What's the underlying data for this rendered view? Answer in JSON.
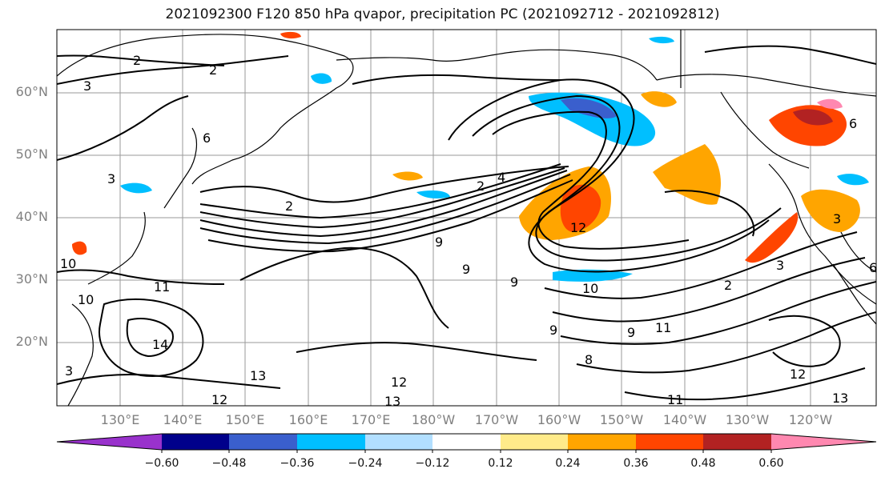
{
  "title": "2021092300 F120 850 hPa qvapor, precipitation PC (2021092712 - 2021092812)",
  "lat_labels": [
    "60°N",
    "50°N",
    "40°N",
    "30°N",
    "20°N"
  ],
  "lon_labels": [
    "130°E",
    "140°E",
    "150°E",
    "160°E",
    "170°E",
    "180°W",
    "170°W",
    "160°W",
    "150°W",
    "140°W",
    "130°W",
    "120°W"
  ],
  "contour_labels": [
    "2",
    "2",
    "3",
    "2",
    "6",
    "3",
    "4",
    "2",
    "12",
    "6",
    "3",
    "9",
    "9",
    "9",
    "10",
    "11",
    "10",
    "14",
    "13",
    "12",
    "13",
    "12",
    "9",
    "11",
    "8",
    "9",
    "11",
    "12",
    "13",
    "3",
    "2",
    "10",
    "3",
    "6"
  ],
  "colorbar": {
    "tick_labels": [
      "−0.60",
      "−0.48",
      "−0.36",
      "−0.24",
      "−0.12",
      "0.12",
      "0.24",
      "0.36",
      "0.48",
      "0.60"
    ],
    "colors": [
      "#9932cc",
      "#00008b",
      "#3a5fcd",
      "#00bfff",
      "#b2dfff",
      "#ffffff",
      "#ffeb8a",
      "#ffa500",
      "#ff4500",
      "#b22222",
      "#ff88b0"
    ]
  }
}
